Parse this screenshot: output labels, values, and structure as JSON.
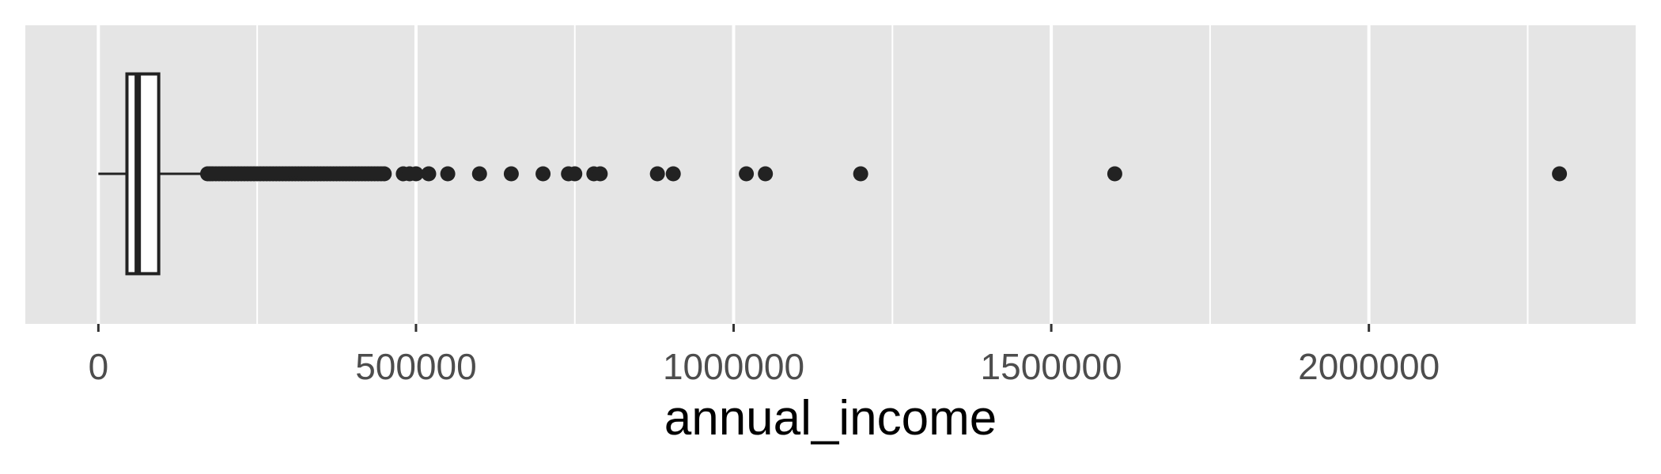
{
  "chart_data": {
    "type": "boxplot",
    "orientation": "horizontal",
    "xlabel": "annual_income",
    "ylabel": "",
    "title": "",
    "xlim": [
      -115000,
      2420000
    ],
    "x_ticks": [
      0,
      500000,
      1000000,
      1500000,
      2000000
    ],
    "x_tick_labels": [
      "0",
      "500000",
      "1000000",
      "1500000",
      "2000000"
    ],
    "grid": true,
    "box": {
      "whisker_low": 0,
      "q1": 45000,
      "median": 62000,
      "q3": 95000,
      "whisker_high": 170000
    },
    "outliers": [
      172000,
      176000,
      180000,
      185000,
      190000,
      195000,
      200000,
      205000,
      210000,
      215000,
      220000,
      225000,
      230000,
      235000,
      240000,
      245000,
      250000,
      255000,
      260000,
      265000,
      270000,
      275000,
      280000,
      285000,
      290000,
      295000,
      300000,
      305000,
      310000,
      315000,
      320000,
      325000,
      330000,
      335000,
      340000,
      345000,
      350000,
      355000,
      360000,
      365000,
      370000,
      375000,
      380000,
      385000,
      390000,
      395000,
      400000,
      405000,
      410000,
      415000,
      420000,
      425000,
      430000,
      435000,
      440000,
      445000,
      450000,
      480000,
      490000,
      500000,
      520000,
      550000,
      600000,
      650000,
      700000,
      740000,
      750000,
      780000,
      790000,
      880000,
      905000,
      1020000,
      1050000,
      1200000,
      1600000,
      2300000
    ],
    "colors": {
      "panel": "#e5e5e5",
      "grid": "#ffffff",
      "box_fill": "#ffffff",
      "box_stroke": "#222222",
      "point": "#222222"
    }
  }
}
